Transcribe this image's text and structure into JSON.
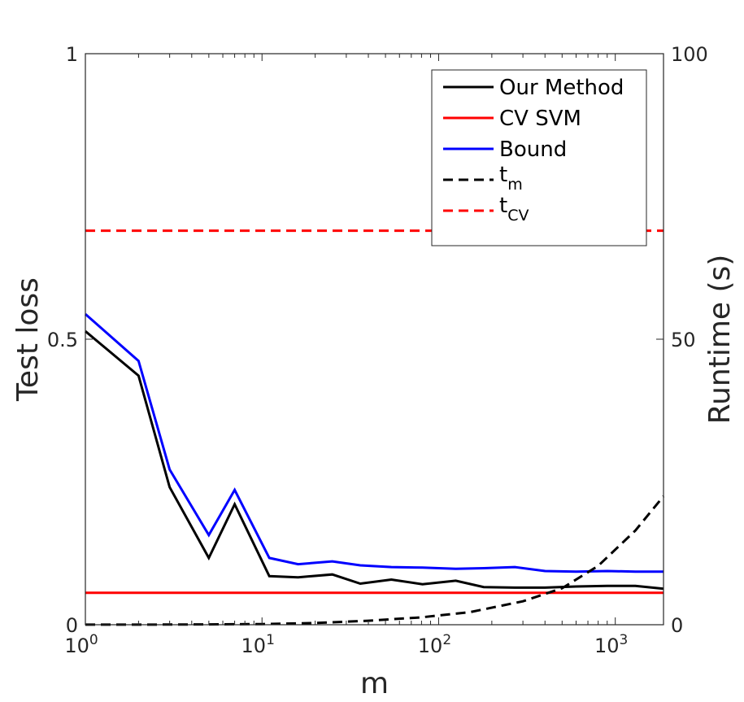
{
  "chart_data": {
    "type": "line",
    "xscale": "log",
    "xlim": [
      1,
      1875
    ],
    "ylim_left": [
      0,
      1
    ],
    "ylim_right": [
      0,
      100
    ],
    "xlabel": "m",
    "ylabel_left": "Test loss",
    "ylabel_right": "Runtime (s)",
    "x_ticks": [
      {
        "base": "10",
        "exp": "0",
        "value": 1
      },
      {
        "base": "10",
        "exp": "1",
        "value": 10
      },
      {
        "base": "10",
        "exp": "2",
        "value": 100
      },
      {
        "base": "10",
        "exp": "3",
        "value": 1000
      }
    ],
    "y_ticks_left": [
      {
        "label": "0",
        "value": 0
      },
      {
        "label": "0.5",
        "value": 0.5
      },
      {
        "label": "1",
        "value": 1
      }
    ],
    "y_ticks_right": [
      {
        "label": "0",
        "value": 0
      },
      {
        "label": "50",
        "value": 50
      },
      {
        "label": "100",
        "value": 100
      }
    ],
    "legend_position": "top-right",
    "series": [
      {
        "name": "Our Method",
        "sub": "",
        "axis": "left",
        "color": "#000000",
        "dash": "solid",
        "x": [
          1,
          2,
          3,
          5,
          7,
          11,
          16,
          25,
          36,
          54,
          81,
          125,
          180,
          270,
          400,
          600,
          900,
          1300,
          1875
        ],
        "y": [
          0.514,
          0.436,
          0.241,
          0.117,
          0.211,
          0.085,
          0.083,
          0.088,
          0.072,
          0.079,
          0.071,
          0.077,
          0.066,
          0.065,
          0.065,
          0.067,
          0.068,
          0.068,
          0.063
        ]
      },
      {
        "name": "CV SVM",
        "sub": "",
        "axis": "left",
        "color": "#ff0000",
        "dash": "solid",
        "x": [
          1,
          1875
        ],
        "y": [
          0.056,
          0.056
        ]
      },
      {
        "name": "Bound",
        "sub": "",
        "axis": "left",
        "color": "#0000ff",
        "dash": "solid",
        "x": [
          1,
          2,
          3,
          5,
          7,
          11,
          16,
          25,
          36,
          54,
          81,
          125,
          180,
          270,
          400,
          600,
          900,
          1300,
          1875
        ],
        "y": [
          0.544,
          0.462,
          0.272,
          0.157,
          0.236,
          0.117,
          0.106,
          0.111,
          0.104,
          0.101,
          0.1,
          0.098,
          0.099,
          0.101,
          0.094,
          0.093,
          0.094,
          0.093,
          0.093
        ]
      },
      {
        "name": "t",
        "sub": "m",
        "axis": "right",
        "color": "#000000",
        "dash": "dashed",
        "x": [
          1,
          2,
          5,
          10,
          20,
          40,
          80,
          150,
          300,
          500,
          800,
          1300,
          1875
        ],
        "y": [
          0.01,
          0.02,
          0.06,
          0.12,
          0.3,
          0.7,
          1.3,
          2.2,
          4.1,
          6.4,
          10.3,
          16.5,
          22.5
        ]
      },
      {
        "name": "t",
        "sub": "CV",
        "axis": "right",
        "color": "#ff0000",
        "dash": "dashed",
        "x": [
          1,
          1875
        ],
        "y": [
          69,
          69
        ]
      }
    ]
  }
}
